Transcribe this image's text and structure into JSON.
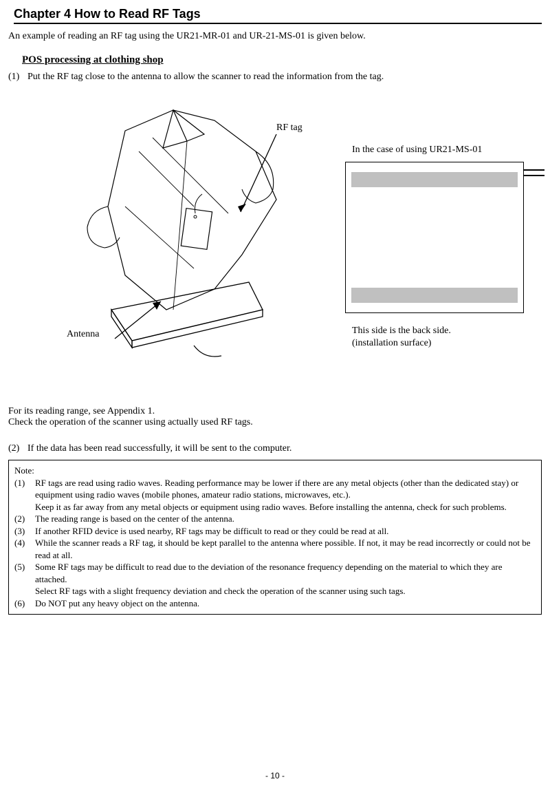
{
  "chapter_title": "Chapter 4 How to Read RF Tags",
  "intro": "An example of reading an RF tag using the UR21-MR-01 and UR-21-MS-01    is given below.",
  "section_title": "POS processing at clothing shop",
  "step1_num": "(1)",
  "step1_text": "Put the RF tag close to the antenna to allow the scanner to read the information from the tag.",
  "labels": {
    "rf_tag": "RF tag",
    "antenna": "Antenna",
    "right_top": "In the case of using UR21-MS-01",
    "right_bottom_l1": "This side is the back side.",
    "right_bottom_l2": "(installation surface)"
  },
  "reading_range_l1": "For its reading range, see Appendix 1.",
  "reading_range_l2": "Check the operation of the scanner using actually used RF tags.",
  "step2_num": "(2)",
  "step2_text": "If the data has been read successfully, it will be sent to the computer.",
  "note": {
    "title": "Note:",
    "items": [
      {
        "n": "(1)",
        "lines": [
          "RF tags are read using radio waves. Reading performance may be lower if there are any metal objects (other than the dedicated stay) or equipment using radio waves (mobile phones, amateur radio stations, microwaves, etc.).",
          "Keep it as far away from any metal objects or equipment using radio waves. Before installing the antenna, check for such problems."
        ]
      },
      {
        "n": "(2)",
        "lines": [
          "The reading range is based on the center of the antenna."
        ]
      },
      {
        "n": "(3)",
        "lines": [
          "If another RFID device is used nearby, RF tags may be difficult to read or they could be read at all."
        ]
      },
      {
        "n": "(4)",
        "lines": [
          "While the scanner reads a RF tag, it should be kept parallel to the antenna where possible. If not, it may be read incorrectly or could not be read at all."
        ]
      },
      {
        "n": "(5)",
        "lines": [
          "Some RF tags may be difficult to read due to the deviation of the resonance frequency depending on the material to which they are attached.",
          "Select RF tags with a slight frequency deviation and check the operation of the scanner using such tags."
        ]
      },
      {
        "n": "(6)",
        "lines": [
          "Do NOT put any heavy object on the antenna."
        ]
      }
    ]
  },
  "page_number": "- 10 -",
  "colors": {
    "text": "#000000",
    "bg": "#ffffff",
    "bar": "#c0c0c0"
  }
}
